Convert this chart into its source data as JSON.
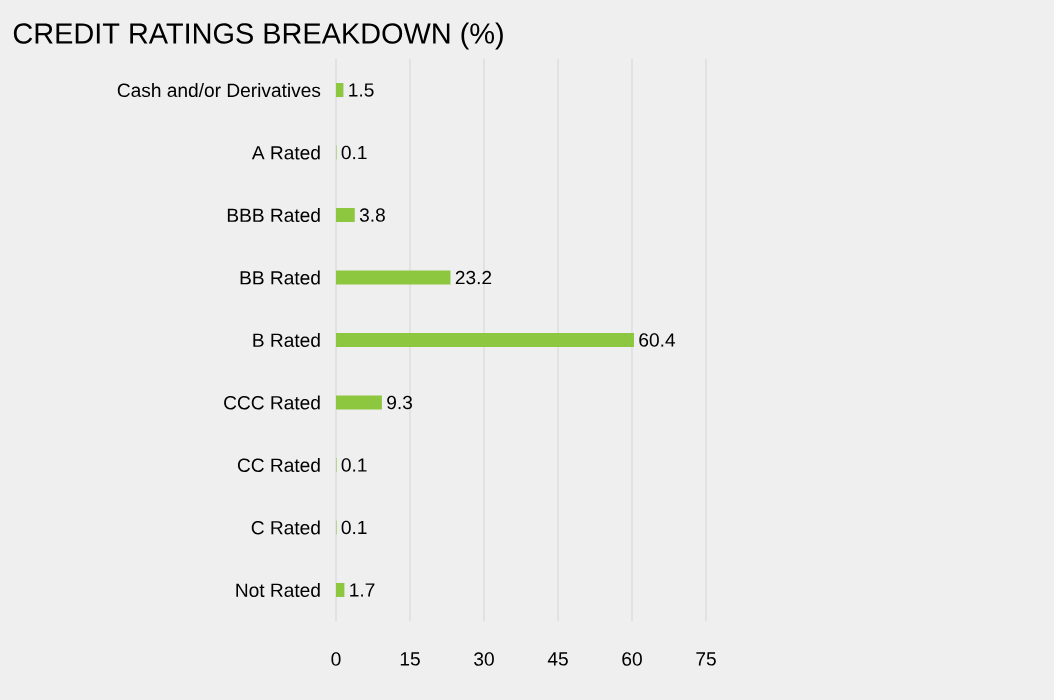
{
  "chart_data": {
    "type": "bar",
    "orientation": "horizontal",
    "title": "CREDIT RATINGS BREAKDOWN (%)",
    "categories": [
      "Cash and/or Derivatives",
      "A Rated",
      "BBB Rated",
      "BB Rated",
      "B Rated",
      "CCC Rated",
      "CC Rated",
      "C Rated",
      "Not Rated"
    ],
    "values": [
      1.5,
      0.1,
      3.8,
      23.2,
      60.4,
      9.3,
      0.1,
      0.1,
      1.7
    ],
    "color": "#8dc63f",
    "xlim": [
      0,
      75
    ],
    "xticks": [
      0,
      15,
      30,
      45,
      60,
      75
    ],
    "grid": "x",
    "data_labels": true
  }
}
